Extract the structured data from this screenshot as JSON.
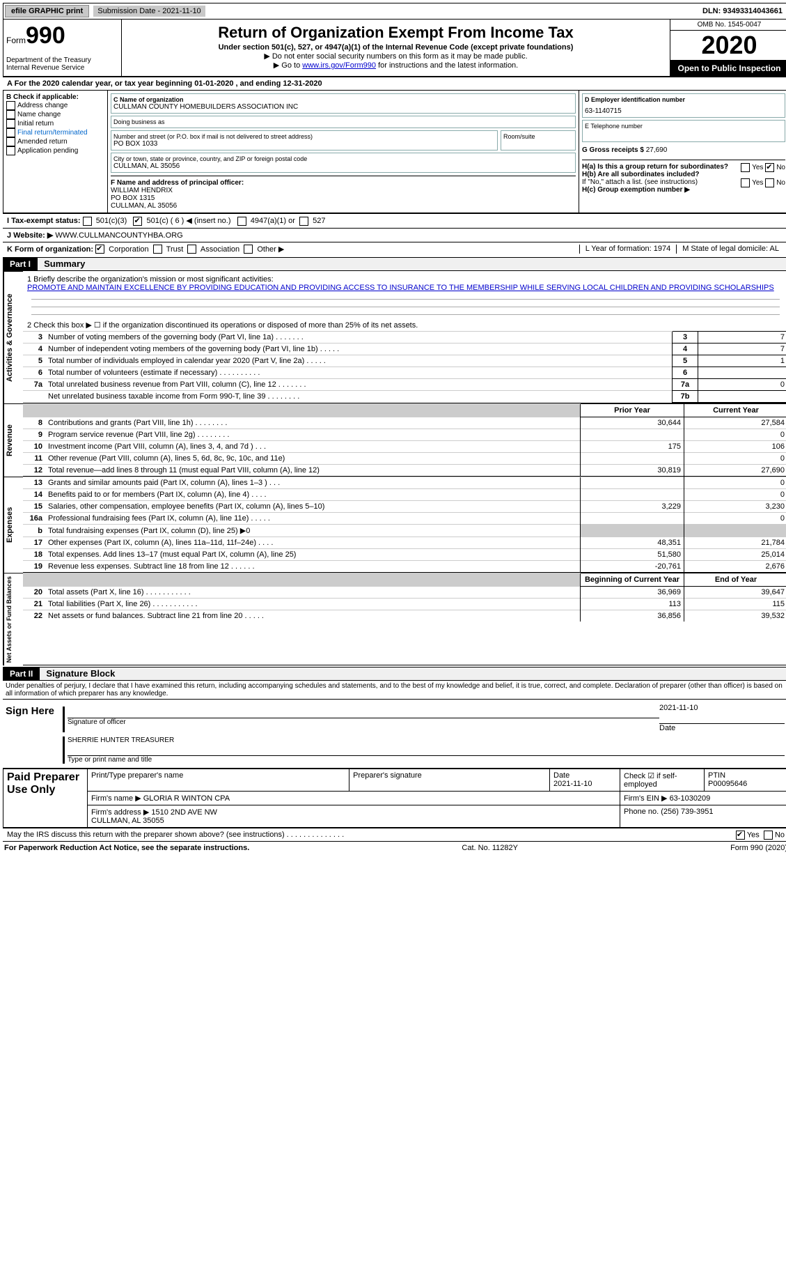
{
  "top_bar": {
    "efile": "efile GRAPHIC print",
    "sub_date_label": "Submission Date - 2021-11-10",
    "dln": "DLN: 93493314043661"
  },
  "header": {
    "form_word": "Form",
    "form_num": "990",
    "dept": "Department of the Treasury\nInternal Revenue Service",
    "title": "Return of Organization Exempt From Income Tax",
    "subtitle": "Under section 501(c), 527, or 4947(a)(1) of the Internal Revenue Code (except private foundations)",
    "note1": "▶ Do not enter social security numbers on this form as it may be made public.",
    "note2_pre": "▶ Go to ",
    "note2_link": "www.irs.gov/Form990",
    "note2_post": " for instructions and the latest information.",
    "omb": "OMB No. 1545-0047",
    "year": "2020",
    "open_public": "Open to Public Inspection"
  },
  "ty_line": "A For the 2020 calendar year, or tax year beginning 01-01-2020   , and ending 12-31-2020",
  "col_b": {
    "label": "B Check if applicable:",
    "items": [
      "Address change",
      "Name change",
      "Initial return",
      "Final return/terminated",
      "Amended return",
      "Application pending"
    ]
  },
  "col_c": {
    "name_lbl": "C Name of organization",
    "name": "CULLMAN COUNTY HOMEBUILDERS ASSOCIATION INC",
    "dba_lbl": "Doing business as",
    "addr_lbl": "Number and street (or P.O. box if mail is not delivered to street address)",
    "room_lbl": "Room/suite",
    "addr": "PO BOX 1033",
    "city_lbl": "City or town, state or province, country, and ZIP or foreign postal code",
    "city": "CULLMAN, AL  35056"
  },
  "col_d": {
    "ein_lbl": "D Employer identification number",
    "ein": "63-1140715",
    "tel_lbl": "E Telephone number",
    "gross_lbl": "G Gross receipts $",
    "gross": "27,690"
  },
  "f_block": {
    "lbl": "F Name and address of principal officer:",
    "name": "WILLIAM HENDRIX",
    "addr1": "PO BOX 1315",
    "addr2": "CULLMAN, AL  35056"
  },
  "h_block": {
    "ha": "H(a)  Is this a group return for subordinates?",
    "hb": "H(b)  Are all subordinates included?",
    "hb_note": "If \"No,\" attach a list. (see instructions)",
    "hc": "H(c)  Group exemption number ▶",
    "yes": "Yes",
    "no": "No"
  },
  "i_line": {
    "lbl": "I    Tax-exempt status:",
    "opts": [
      "501(c)(3)",
      "501(c) ( 6 ) ◀ (insert no.)",
      "4947(a)(1) or",
      "527"
    ]
  },
  "j_line": {
    "lbl": "J   Website: ▶",
    "val": "WWW.CULLMANCOUNTYHBA.ORG"
  },
  "k_line": {
    "lbl": "K Form of organization:",
    "opts": [
      "Corporation",
      "Trust",
      "Association",
      "Other ▶"
    ]
  },
  "l_line": "L Year of formation: 1974",
  "m_line": "M State of legal domicile: AL",
  "part1": {
    "header": "Part I",
    "title": "Summary",
    "mission_lbl": "1  Briefly describe the organization's mission or most significant activities:",
    "mission": "PROMOTE AND MAINTAIN EXCELLENCE BY PROVIDING EDUCATION AND PROVIDING ACCESS TO INSURANCE TO THE MEMBERSHIP WHILE SERVING LOCAL CHILDREN AND PROVIDING SCHOLARSHIPS",
    "line2": "2    Check this box ▶ ☐  if the organization discontinued its operations or disposed of more than 25% of its net assets.",
    "gov_rows": [
      {
        "n": "3",
        "d": "Number of voting members of the governing body (Part VI, line 1a)   .    .    .    .    .    .    .",
        "box": "3",
        "v": "7"
      },
      {
        "n": "4",
        "d": "Number of independent voting members of the governing body (Part VI, line 1b)   .    .    .    .    .",
        "box": "4",
        "v": "7"
      },
      {
        "n": "5",
        "d": "Total number of individuals employed in calendar year 2020 (Part V, line 2a)   .    .    .    .    .",
        "box": "5",
        "v": "1"
      },
      {
        "n": "6",
        "d": "Total number of volunteers (estimate if necessary)    .    .    .    .    .    .    .    .    .    .",
        "box": "6",
        "v": ""
      },
      {
        "n": "7a",
        "d": "Total unrelated business revenue from Part VIII, column (C), line 12   .    .    .    .    .    .    .",
        "box": "7a",
        "v": "0"
      },
      {
        "n": "",
        "d": "Net unrelated business taxable income from Form 990-T, line 39   .    .    .    .    .    .    .    .",
        "box": "7b",
        "v": ""
      }
    ],
    "prior_hdr": "Prior Year",
    "curr_hdr": "Current Year",
    "rev_rows": [
      {
        "n": "8",
        "d": "Contributions and grants (Part VIII, line 1h)   .    .    .    .    .    .    .    .",
        "py": "30,644",
        "cy": "27,584"
      },
      {
        "n": "9",
        "d": "Program service revenue (Part VIII, line 2g)    .    .    .    .    .    .    .    .",
        "py": "",
        "cy": "0"
      },
      {
        "n": "10",
        "d": "Investment income (Part VIII, column (A), lines 3, 4, and 7d )    .    .    .",
        "py": "175",
        "cy": "106"
      },
      {
        "n": "11",
        "d": "Other revenue (Part VIII, column (A), lines 5, 6d, 8c, 9c, 10c, and 11e)",
        "py": "",
        "cy": "0"
      },
      {
        "n": "12",
        "d": "Total revenue—add lines 8 through 11 (must equal Part VIII, column (A), line 12)",
        "py": "30,819",
        "cy": "27,690"
      }
    ],
    "exp_rows": [
      {
        "n": "13",
        "d": "Grants and similar amounts paid (Part IX, column (A), lines 1–3 )   .    .    .",
        "py": "",
        "cy": "0"
      },
      {
        "n": "14",
        "d": "Benefits paid to or for members (Part IX, column (A), line 4)   .    .    .    .",
        "py": "",
        "cy": "0"
      },
      {
        "n": "15",
        "d": "Salaries, other compensation, employee benefits (Part IX, column (A), lines 5–10)",
        "py": "3,229",
        "cy": "3,230"
      },
      {
        "n": "16a",
        "d": "Professional fundraising fees (Part IX, column (A), line 11e)   .    .    .    .    .",
        "py": "",
        "cy": "0"
      },
      {
        "n": "b",
        "d": "Total fundraising expenses (Part IX, column (D), line 25) ▶0",
        "py": "GREY",
        "cy": "GREY"
      },
      {
        "n": "17",
        "d": "Other expenses (Part IX, column (A), lines 11a–11d, 11f–24e)   .    .    .    .",
        "py": "48,351",
        "cy": "21,784"
      },
      {
        "n": "18",
        "d": "Total expenses. Add lines 13–17 (must equal Part IX, column (A), line 25)",
        "py": "51,580",
        "cy": "25,014"
      },
      {
        "n": "19",
        "d": "Revenue less expenses. Subtract line 18 from line 12   .    .    .    .    .    .",
        "py": "-20,761",
        "cy": "2,676"
      }
    ],
    "na_hdr_py": "Beginning of Current Year",
    "na_hdr_cy": "End of Year",
    "na_rows": [
      {
        "n": "20",
        "d": "Total assets (Part X, line 16)   .    .    .    .    .    .    .    .    .    .    .",
        "py": "36,969",
        "cy": "39,647"
      },
      {
        "n": "21",
        "d": "Total liabilities (Part X, line 26)   .    .    .    .    .    .    .    .    .    .    .",
        "py": "113",
        "cy": "115"
      },
      {
        "n": "22",
        "d": "Net assets or fund balances. Subtract line 21 from line 20   .    .    .    .    .",
        "py": "36,856",
        "cy": "39,532"
      }
    ],
    "vlabels": {
      "gov": "Activities & Governance",
      "rev": "Revenue",
      "exp": "Expenses",
      "na": "Net Assets or Fund Balances"
    }
  },
  "part2": {
    "header": "Part II",
    "title": "Signature Block",
    "jurat": "Under penalties of perjury, I declare that I have examined this return, including accompanying schedules and statements, and to the best of my knowledge and belief, it is true, correct, and complete. Declaration of preparer (other than officer) is based on all information of which preparer has any knowledge.",
    "sign_here": "Sign Here",
    "sig_officer": "Signature of officer",
    "sig_date": "2021-11-10",
    "date_lbl": "Date",
    "officer_name": "SHERRIE HUNTER  TREASURER",
    "name_title_lbl": "Type or print name and title",
    "paid_prep": "Paid Preparer Use Only",
    "pt_name_lbl": "Print/Type preparer's name",
    "pt_sig_lbl": "Preparer's signature",
    "pt_date_lbl": "Date",
    "pt_date": "2021-11-10",
    "check_lbl": "Check ☑ if self-employed",
    "ptin_lbl": "PTIN",
    "ptin": "P00095646",
    "firm_name_lbl": "Firm's name    ▶",
    "firm_name": "GLORIA R WINTON CPA",
    "firm_ein_lbl": "Firm's EIN ▶",
    "firm_ein": "63-1030209",
    "firm_addr_lbl": "Firm's address ▶",
    "firm_addr": "1510 2ND AVE NW\nCULLMAN, AL  35055",
    "firm_phone_lbl": "Phone no.",
    "firm_phone": "(256) 739-3951",
    "discuss": "May the IRS discuss this return with the preparer shown above? (see instructions)   .    .    .    .    .    .    .    .    .    .    .    .    .    .",
    "yes": "Yes",
    "no": "No"
  },
  "footer": {
    "pra": "For Paperwork Reduction Act Notice, see the separate instructions.",
    "cat": "Cat. No. 11282Y",
    "form": "Form 990 (2020)"
  }
}
